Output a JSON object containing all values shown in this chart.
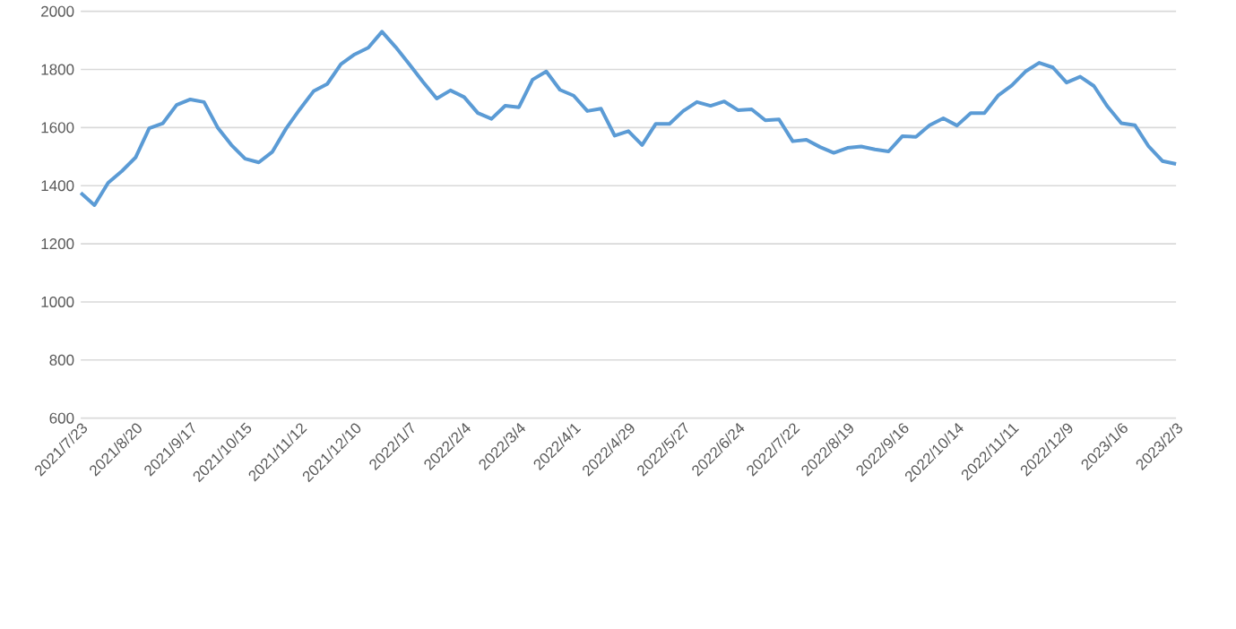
{
  "chart_data": {
    "type": "line",
    "categories": [
      "2021/7/23",
      null,
      null,
      null,
      "2021/8/20",
      null,
      null,
      null,
      "2021/9/17",
      null,
      null,
      null,
      "2021/10/15",
      null,
      null,
      null,
      "2021/11/12",
      null,
      null,
      null,
      "2021/12/10",
      null,
      null,
      null,
      "2022/1/7",
      null,
      null,
      null,
      "2022/2/4",
      null,
      null,
      null,
      "2022/3/4",
      null,
      null,
      null,
      "2022/4/1",
      null,
      null,
      null,
      "2022/4/29",
      null,
      null,
      null,
      "2022/5/27",
      null,
      null,
      null,
      "2022/6/24",
      null,
      null,
      null,
      "2022/7/22",
      null,
      null,
      null,
      "2022/8/19",
      null,
      null,
      null,
      "2022/9/16",
      null,
      null,
      null,
      "2022/10/14",
      null,
      null,
      null,
      "2022/11/11",
      null,
      null,
      null,
      "2022/12/9",
      null,
      null,
      null,
      "2023/1/6",
      null,
      null,
      null,
      "2023/2/3"
    ],
    "values": [
      1375,
      1333,
      1410,
      1450,
      1497,
      1598,
      1615,
      1678,
      1697,
      1688,
      1600,
      1540,
      1493,
      1480,
      1517,
      1597,
      1663,
      1725,
      1750,
      1818,
      1852,
      1875,
      1930,
      1877,
      1818,
      1757,
      1700,
      1728,
      1705,
      1650,
      1630,
      1675,
      1670,
      1765,
      1793,
      1730,
      1710,
      1657,
      1665,
      1572,
      1588,
      1540,
      1613,
      1613,
      1657,
      1688,
      1675,
      1690,
      1660,
      1663,
      1625,
      1628,
      1553,
      1558,
      1533,
      1513,
      1530,
      1535,
      1525,
      1518,
      1570,
      1568,
      1608,
      1632,
      1607,
      1650,
      1650,
      1710,
      1745,
      1793,
      1823,
      1807,
      1755,
      1775,
      1743,
      1672,
      1615,
      1608,
      1535,
      1485,
      1475
    ],
    "color": "#5b9bd5",
    "ylim": [
      600,
      2000
    ],
    "yticks": [
      600,
      800,
      1000,
      1200,
      1400,
      1600,
      1800,
      2000
    ],
    "grid": "y"
  }
}
